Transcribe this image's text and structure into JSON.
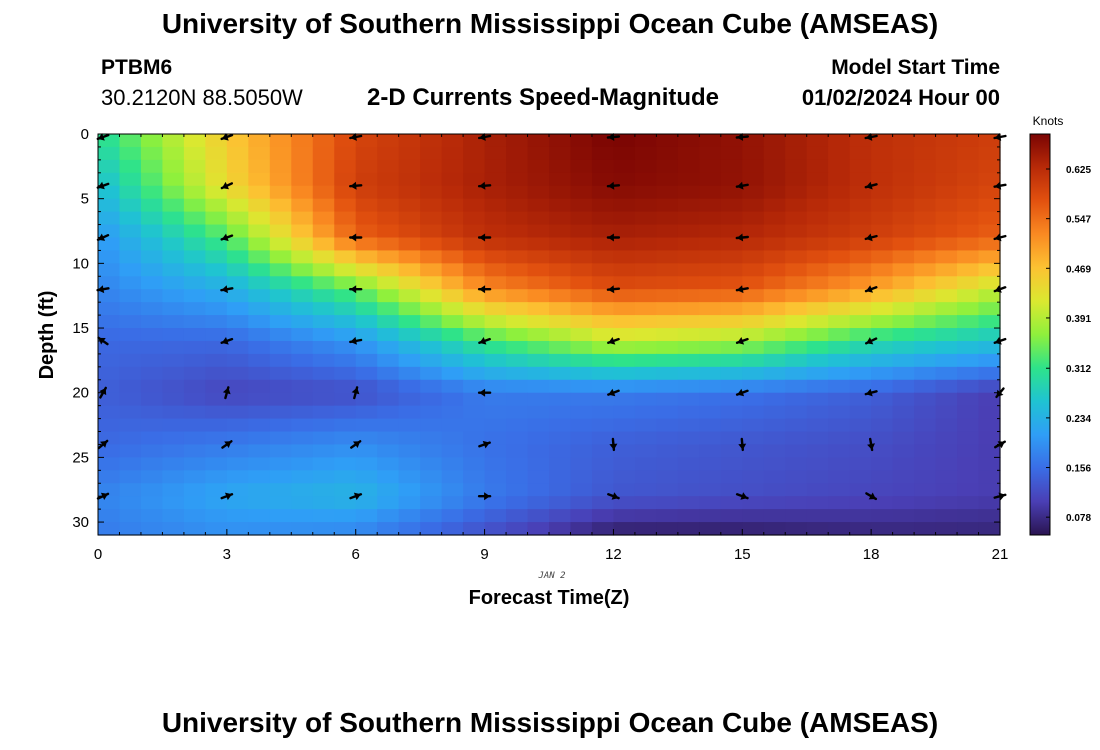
{
  "page": {
    "title": "University of Southern Mississippi Ocean Cube (AMSEAS)",
    "footer_title": "University of Southern Mississippi Ocean Cube (AMSEAS)",
    "station_id": "PTBM6",
    "coordinates": "30.2120N  88.5050W",
    "model_start_label": "Model Start Time",
    "model_start_value": "01/02/2024 Hour 00"
  },
  "chart_data": {
    "type": "heatmap",
    "title": "2-D Currents Speed-Magnitude",
    "xlabel": "Forecast Time(Z)",
    "ylabel": "Depth (ft)",
    "date_annotation": "JAN 2",
    "x_ticks": [
      "0",
      "3",
      "6",
      "9",
      "12",
      "15",
      "18",
      "21"
    ],
    "y_ticks": [
      "0",
      "5",
      "10",
      "15",
      "20",
      "25",
      "30"
    ],
    "xlim": [
      0,
      21
    ],
    "ylim": [
      0,
      31
    ],
    "y_inverted": true,
    "colorbar": {
      "units": "Knots",
      "tick_labels": [
        "0.078",
        "0.156",
        "0.234",
        "0.312",
        "0.391",
        "0.469",
        "0.547",
        "0.625"
      ],
      "range": [
        0.05,
        0.68
      ],
      "colors": [
        "#2a1450",
        "#4a3fb5",
        "#3a6de6",
        "#2f9ef6",
        "#1fc3d2",
        "#2ee38a",
        "#8ff03c",
        "#dbe830",
        "#fcc232",
        "#fa8a22",
        "#e2510f",
        "#b82a08",
        "#7a0403"
      ]
    },
    "speed_field": {
      "hours": [
        0,
        3,
        6,
        9,
        12,
        15,
        18,
        21
      ],
      "depths_ft": [
        0,
        4,
        8,
        12,
        16,
        20,
        24,
        28,
        31
      ],
      "knots": [
        [
          0.3,
          0.46,
          0.59,
          0.64,
          0.68,
          0.66,
          0.62,
          0.6
        ],
        [
          0.25,
          0.44,
          0.6,
          0.64,
          0.67,
          0.66,
          0.62,
          0.59
        ],
        [
          0.2,
          0.33,
          0.56,
          0.62,
          0.64,
          0.63,
          0.6,
          0.56
        ],
        [
          0.18,
          0.23,
          0.34,
          0.52,
          0.58,
          0.57,
          0.5,
          0.4
        ],
        [
          0.15,
          0.15,
          0.2,
          0.32,
          0.4,
          0.38,
          0.3,
          0.26
        ],
        [
          0.14,
          0.11,
          0.12,
          0.17,
          0.17,
          0.16,
          0.14,
          0.1
        ],
        [
          0.15,
          0.17,
          0.19,
          0.16,
          0.14,
          0.13,
          0.12,
          0.1
        ],
        [
          0.18,
          0.22,
          0.24,
          0.17,
          0.13,
          0.12,
          0.11,
          0.1
        ],
        [
          0.17,
          0.19,
          0.18,
          0.12,
          0.06,
          0.06,
          0.07,
          0.07
        ]
      ]
    },
    "vectors": {
      "hours": [
        0,
        3,
        6,
        9,
        12,
        15,
        18,
        21
      ],
      "depths_ft": [
        0,
        4,
        8,
        12,
        16,
        20,
        24,
        28
      ],
      "direction_deg_math": [
        [
          200,
          200,
          190,
          190,
          185,
          185,
          190,
          190
        ],
        [
          200,
          205,
          185,
          185,
          185,
          190,
          195,
          190
        ],
        [
          205,
          200,
          180,
          180,
          180,
          185,
          195,
          195
        ],
        [
          190,
          190,
          180,
          180,
          185,
          190,
          200,
          200
        ],
        [
          145,
          200,
          190,
          200,
          200,
          200,
          205,
          200
        ],
        [
          60,
          75,
          75,
          180,
          200,
          200,
          195,
          230
        ],
        [
          40,
          35,
          35,
          20,
          275,
          275,
          280,
          30
        ],
        [
          25,
          20,
          20,
          0,
          340,
          340,
          330,
          15
        ]
      ]
    }
  }
}
